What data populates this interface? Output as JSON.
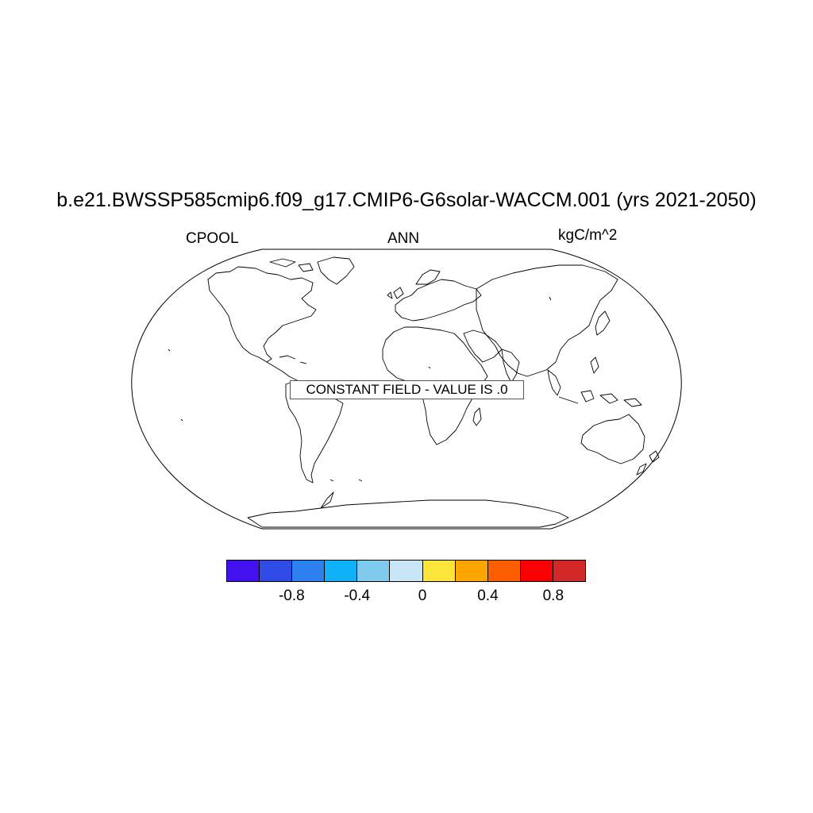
{
  "title": "b.e21.BWSSP585cmip6.f09_g17.CMIP6-G6solar-WACCM.001 (yrs 2021-2050)",
  "left_label": "CPOOL",
  "center_label": "ANN",
  "right_label": "kgC/m^2",
  "map_message": "CONSTANT FIELD - VALUE IS .0",
  "colorbar": {
    "colors": [
      "#4311f0",
      "#2e4be6",
      "#2c80ef",
      "#0fb2f8",
      "#7fcaef",
      "#c8e6f5",
      "#fde43b",
      "#fea500",
      "#fe5e00",
      "#fb0000",
      "#d32828"
    ],
    "ticks": [
      "-0.8",
      "-0.4",
      "0",
      "0.4",
      "0.8"
    ]
  }
}
